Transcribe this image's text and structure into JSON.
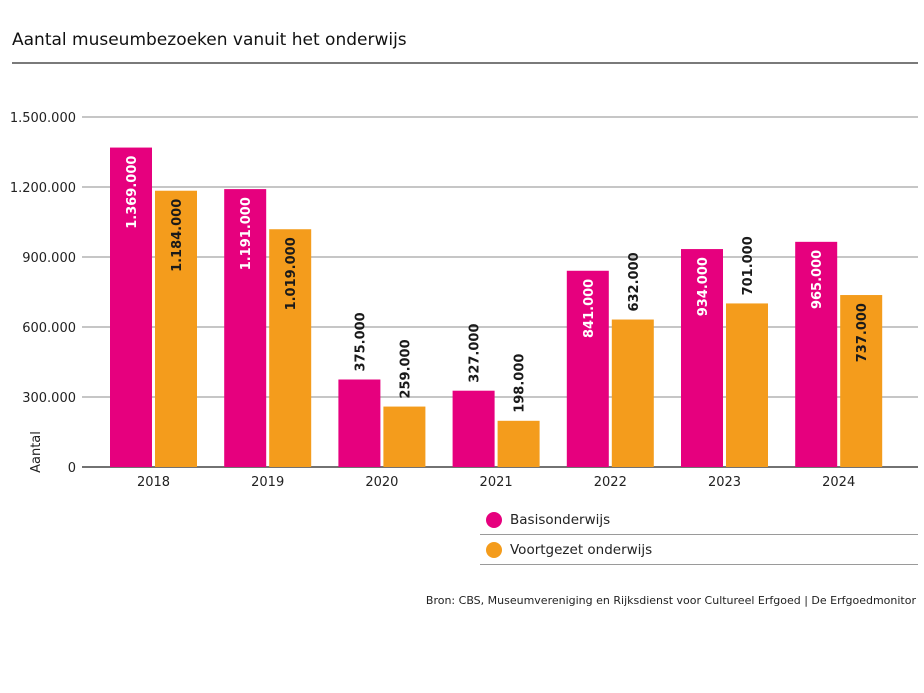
{
  "title": "Aantal museumbezoeken vanuit het onderwijs",
  "source": "Bron: CBS, Museumvereniging en Rijksdienst voor Cultureel Erfgoed | De Erfgoedmonitor",
  "legend": [
    {
      "label": "Basisonderwijs",
      "color": "#e6007e"
    },
    {
      "label": "Voortgezet onderwijs",
      "color": "#f49c1c"
    }
  ],
  "chart_data": {
    "type": "bar",
    "title": "Aantal museumbezoeken vanuit het onderwijs",
    "xlabel": "",
    "ylabel": "Aantal",
    "ylim": [
      0,
      1500000
    ],
    "yticks": [
      0,
      300000,
      600000,
      900000,
      1200000,
      1500000
    ],
    "ytick_labels": [
      "0",
      "300.000",
      "600.000",
      "900.000",
      "1.200.000",
      "1.500.000"
    ],
    "grid": true,
    "legend_position": "bottom-right",
    "categories": [
      "2018",
      "2019",
      "2020",
      "2021",
      "2022",
      "2023",
      "2024"
    ],
    "series": [
      {
        "name": "Basisonderwijs",
        "color": "#e6007e",
        "values": [
          1369000,
          1191000,
          375000,
          327000,
          841000,
          934000,
          965000
        ],
        "labels": [
          "1.369.000",
          "1.191.000",
          "375.000",
          "327.000",
          "841.000",
          "934.000",
          "965.000"
        ]
      },
      {
        "name": "Voortgezet onderwijs",
        "color": "#f49c1c",
        "values": [
          1184000,
          1019000,
          259000,
          198000,
          632000,
          701000,
          737000
        ],
        "labels": [
          "1.184.000",
          "1.019.000",
          "259.000",
          "198.000",
          "632.000",
          "701.000",
          "737.000"
        ]
      }
    ]
  }
}
